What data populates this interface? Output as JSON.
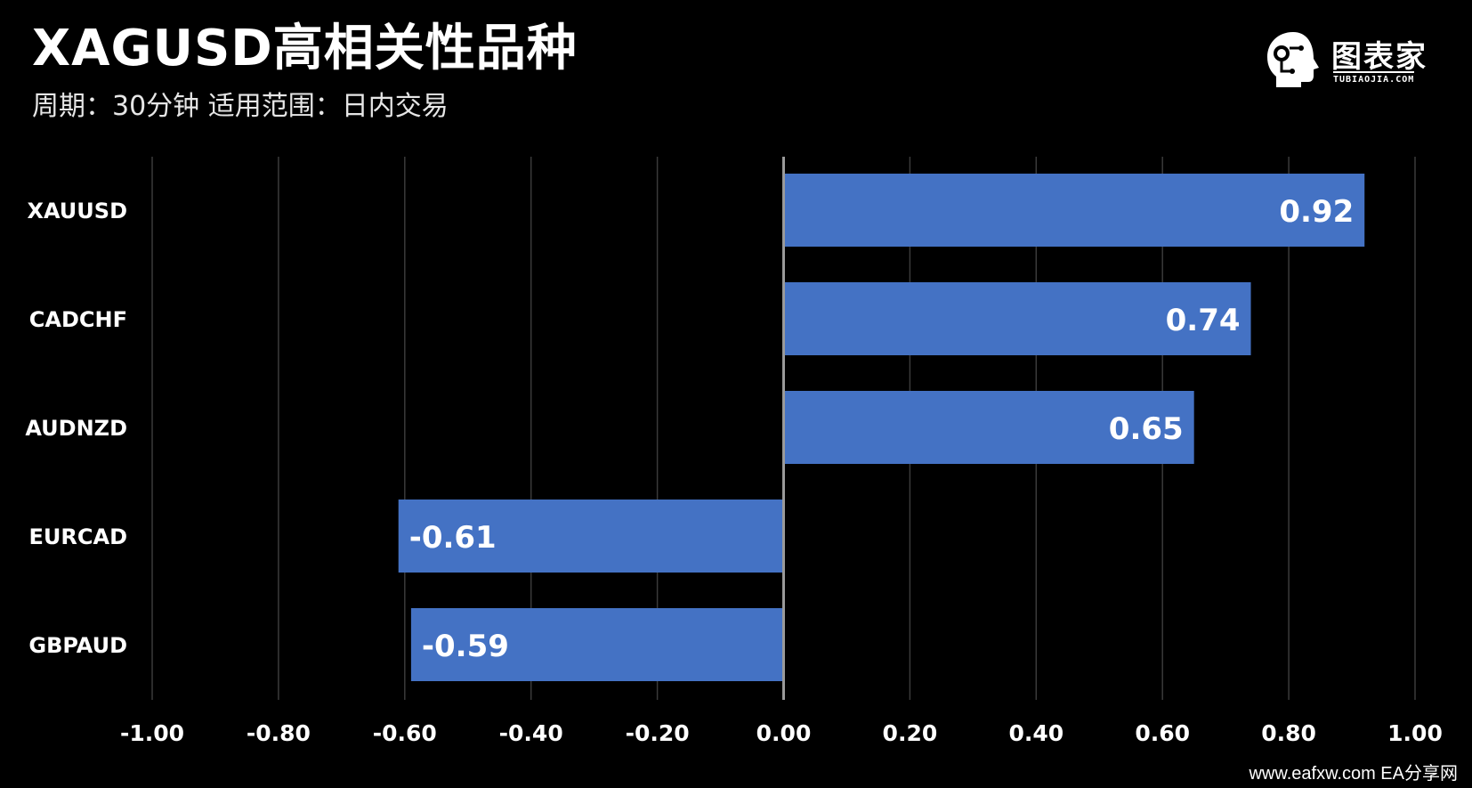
{
  "header": {
    "title": "XAGUSD高相关性品种",
    "subtitle": "周期：30分钟  适用范围：日内交易"
  },
  "logo": {
    "name": "图表家",
    "subtext": "TUBIAOJIA.COM"
  },
  "watermark": "www.eafxw.com   EA分享网",
  "colors": {
    "background": "#000000",
    "bar": "#4472C4",
    "grid": "#3a3a3a",
    "zero_axis": "#9a9a9a",
    "text": "#ffffff"
  },
  "chart_data": {
    "type": "bar",
    "orientation": "horizontal",
    "categories": [
      "XAUUSD",
      "CADCHF",
      "AUDNZD",
      "EURCAD",
      "GBPAUD"
    ],
    "values": [
      0.92,
      0.74,
      0.65,
      -0.61,
      -0.59
    ],
    "value_labels": [
      "0.92",
      "0.74",
      "0.65",
      "-0.61",
      "-0.59"
    ],
    "x_ticks": [
      -1.0,
      -0.8,
      -0.6,
      -0.4,
      -0.2,
      0.0,
      0.2,
      0.4,
      0.6,
      0.8,
      1.0
    ],
    "x_tick_labels": [
      "-1.00",
      "-0.80",
      "-0.60",
      "-0.40",
      "-0.20",
      "0.00",
      "0.20",
      "0.40",
      "0.60",
      "0.80",
      "1.00"
    ],
    "xlim": [
      -1.0,
      1.0
    ],
    "grid": true,
    "legend": false
  }
}
